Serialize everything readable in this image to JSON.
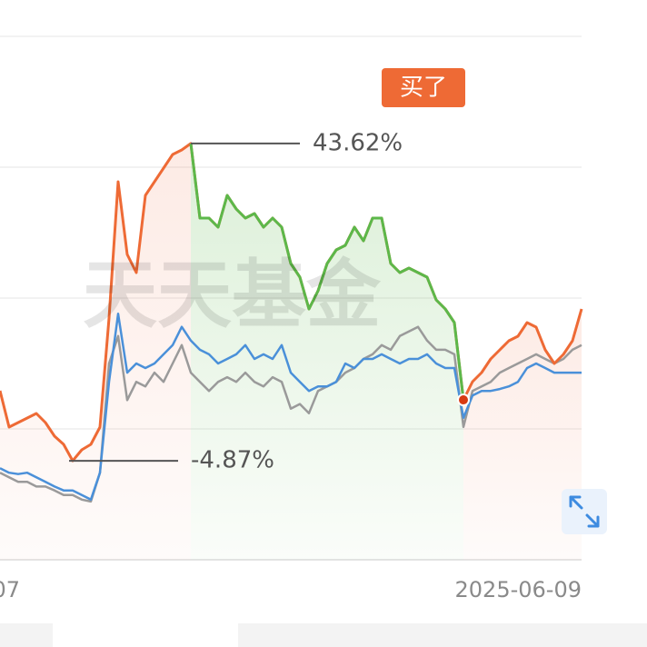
{
  "chart_data": {
    "type": "line",
    "watermark": "天天基金",
    "buy_label": "买了",
    "annotations": [
      {
        "text": "43.62%",
        "value": 43.62
      },
      {
        "text": "-4.87%",
        "value": -4.87
      }
    ],
    "categories": [
      "07",
      null,
      null,
      null,
      null,
      null,
      null,
      null,
      null,
      null,
      null,
      null,
      null,
      null,
      null,
      null,
      null,
      null,
      null,
      null,
      null,
      null,
      null,
      null,
      null,
      null,
      null,
      null,
      null,
      null,
      null,
      null,
      null,
      null,
      null,
      null,
      null,
      null,
      null,
      null,
      null,
      null,
      null,
      null,
      null,
      null,
      null,
      null,
      null,
      null,
      null,
      null,
      null,
      null,
      null,
      null,
      null,
      null,
      null,
      null,
      null,
      null,
      null,
      null,
      "2025-06-09"
    ],
    "series": [
      {
        "color": "#ee6a35",
        "drawdown_color": "#5cb84a",
        "values": [
          5.83,
          0.28,
          0.97,
          1.67,
          2.36,
          0.97,
          -1.11,
          -2.36,
          -4.87,
          -3.19,
          -2.36,
          0.28,
          16.94,
          37.78,
          26.67,
          23.89,
          35.69,
          37.78,
          39.86,
          41.94,
          42.64,
          43.62,
          32.22,
          32.22,
          30.83,
          35.69,
          33.61,
          32.22,
          32.92,
          30.83,
          32.22,
          30.83,
          25.28,
          23.19,
          18.33,
          21.11,
          25.28,
          27.36,
          28.06,
          30.83,
          28.75,
          32.22,
          32.22,
          25.28,
          23.89,
          24.58,
          23.89,
          23.19,
          19.72,
          18.33,
          16.25,
          4.44,
          7.22,
          8.61,
          10.69,
          12.08,
          13.47,
          14.17,
          16.25,
          15.56,
          12.08,
          10,
          11.39,
          13.47,
          18.33
        ]
      },
      {
        "color": "#4a90d9",
        "values": [
          -6.0,
          -6.7,
          -6.9,
          -6.7,
          -7.4,
          -8.1,
          -8.8,
          -9.4,
          -9.4,
          -10.1,
          -10.8,
          -6.7,
          7.2,
          17.6,
          8.6,
          10.0,
          9.3,
          10.0,
          11.4,
          12.8,
          15.6,
          13.5,
          12.1,
          11.4,
          10.0,
          10.7,
          11.4,
          12.8,
          10.7,
          11.4,
          10.7,
          12.8,
          8.6,
          7.2,
          5.8,
          6.5,
          6.5,
          7.2,
          10.0,
          9.3,
          10.7,
          10.7,
          11.4,
          10.7,
          10.0,
          10.7,
          10.7,
          11.4,
          10.0,
          9.3,
          9.3,
          1.7,
          5.1,
          5.8,
          5.8,
          6.1,
          6.5,
          7.2,
          9.3,
          10.0,
          9.3,
          8.6,
          8.6,
          8.6,
          8.6
        ]
      },
      {
        "color": "#9a9a9a",
        "values": [
          -6.7,
          -7.4,
          -8.1,
          -8.1,
          -8.8,
          -8.8,
          -9.4,
          -10.1,
          -10.1,
          -10.8,
          -11.1,
          -6.7,
          10.0,
          14.2,
          4.4,
          7.2,
          6.5,
          8.6,
          7.2,
          10.0,
          12.8,
          8.6,
          7.2,
          5.8,
          7.2,
          7.9,
          7.2,
          8.6,
          7.2,
          6.5,
          7.9,
          7.2,
          3.1,
          3.8,
          2.4,
          5.8,
          6.5,
          7.2,
          8.6,
          9.3,
          10.7,
          11.4,
          12.8,
          12.1,
          14.2,
          14.9,
          15.6,
          13.5,
          12.1,
          12.1,
          11.4,
          0.3,
          5.8,
          6.5,
          7.2,
          8.6,
          9.3,
          10.0,
          10.7,
          11.4,
          10.7,
          10.0,
          10.7,
          12.1,
          12.8
        ]
      }
    ],
    "ylim": [
      -20,
      60
    ],
    "yticks": [
      -20,
      0,
      20,
      40,
      60
    ],
    "grid": true
  }
}
